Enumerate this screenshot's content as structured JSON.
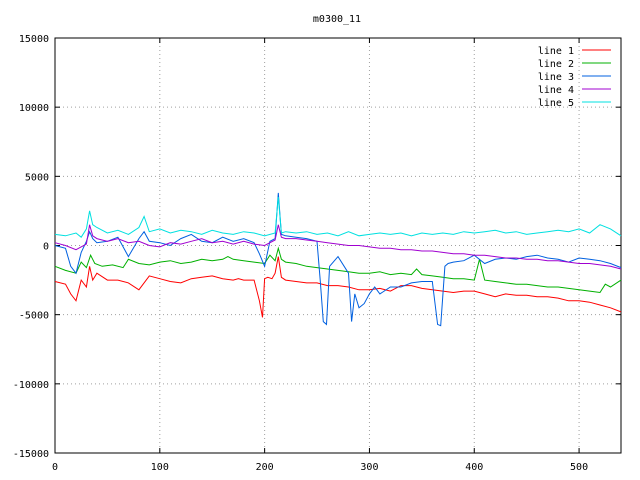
{
  "chart_data": {
    "type": "line",
    "title": "m0300_11",
    "xlabel": "",
    "ylabel": "",
    "xlim": [
      0,
      540
    ],
    "ylim": [
      -15000,
      15000
    ],
    "grid": true,
    "legend_position": "top-right",
    "x_ticks": [
      0,
      100,
      200,
      300,
      400,
      500
    ],
    "y_ticks": [
      -15000,
      -10000,
      -5000,
      0,
      5000,
      10000,
      15000
    ],
    "series": [
      {
        "name": "line 1",
        "color": "#ff0000",
        "x": [
          0,
          10,
          15,
          20,
          25,
          30,
          33,
          36,
          40,
          50,
          60,
          70,
          80,
          90,
          100,
          110,
          120,
          130,
          140,
          150,
          160,
          170,
          175,
          180,
          190,
          195,
          198,
          200,
          203,
          207,
          210,
          213,
          216,
          220,
          230,
          240,
          250,
          260,
          270,
          280,
          290,
          300,
          310,
          320,
          330,
          340,
          350,
          360,
          370,
          380,
          390,
          400,
          410,
          420,
          430,
          440,
          450,
          460,
          470,
          480,
          490,
          500,
          510,
          520,
          530,
          540
        ],
        "y": [
          -2600,
          -2800,
          -3500,
          -4000,
          -2500,
          -3000,
          -1500,
          -2500,
          -2000,
          -2500,
          -2500,
          -2700,
          -3200,
          -2200,
          -2400,
          -2600,
          -2700,
          -2400,
          -2300,
          -2200,
          -2400,
          -2500,
          -2400,
          -2500,
          -2500,
          -4000,
          -5200,
          -2400,
          -2300,
          -2400,
          -2000,
          -800,
          -2300,
          -2500,
          -2600,
          -2700,
          -2700,
          -2900,
          -2900,
          -3000,
          -3200,
          -3200,
          -3100,
          -3300,
          -2900,
          -2900,
          -3100,
          -3200,
          -3300,
          -3400,
          -3300,
          -3300,
          -3500,
          -3700,
          -3500,
          -3600,
          -3600,
          -3700,
          -3700,
          -3800,
          -4000,
          -4000,
          -4100,
          -4300,
          -4500,
          -4800
        ]
      },
      {
        "name": "line 2",
        "color": "#00b000",
        "x": [
          0,
          10,
          20,
          25,
          30,
          34,
          38,
          45,
          55,
          65,
          70,
          80,
          90,
          100,
          110,
          120,
          130,
          140,
          150,
          160,
          165,
          170,
          180,
          190,
          200,
          205,
          210,
          213,
          216,
          220,
          230,
          240,
          250,
          260,
          270,
          280,
          290,
          300,
          310,
          320,
          330,
          340,
          345,
          350,
          360,
          370,
          380,
          390,
          400,
          405,
          410,
          420,
          430,
          440,
          450,
          460,
          470,
          480,
          490,
          500,
          510,
          520,
          525,
          530,
          540
        ],
        "y": [
          -1500,
          -1800,
          -2000,
          -1200,
          -1600,
          -700,
          -1300,
          -1500,
          -1400,
          -1600,
          -1000,
          -1300,
          -1400,
          -1200,
          -1100,
          -1300,
          -1200,
          -1000,
          -1100,
          -1000,
          -800,
          -1000,
          -1100,
          -1200,
          -1300,
          -700,
          -1100,
          -200,
          -1000,
          -1200,
          -1300,
          -1500,
          -1600,
          -1700,
          -1800,
          -1900,
          -2000,
          -2000,
          -1900,
          -2100,
          -2000,
          -2100,
          -1700,
          -2100,
          -2200,
          -2300,
          -2400,
          -2400,
          -2500,
          -1000,
          -2500,
          -2600,
          -2700,
          -2800,
          -2800,
          -2900,
          -3000,
          -3000,
          -3100,
          -3200,
          -3300,
          -3400,
          -2800,
          -3000,
          -2500
        ]
      },
      {
        "name": "line 3",
        "color": "#0060e0",
        "x": [
          0,
          10,
          15,
          20,
          25,
          30,
          33,
          36,
          40,
          50,
          60,
          70,
          80,
          85,
          90,
          100,
          110,
          120,
          130,
          140,
          150,
          160,
          170,
          180,
          190,
          195,
          200,
          205,
          210,
          213,
          216,
          220,
          230,
          240,
          250,
          253,
          256,
          259,
          262,
          270,
          280,
          283,
          286,
          290,
          295,
          300,
          305,
          310,
          320,
          330,
          340,
          350,
          360,
          365,
          368,
          372,
          375,
          380,
          390,
          400,
          410,
          420,
          430,
          440,
          450,
          460,
          470,
          480,
          490,
          500,
          510,
          520,
          530,
          540
        ],
        "y": [
          0,
          -200,
          -1500,
          -2000,
          -500,
          300,
          1000,
          500,
          200,
          300,
          600,
          -800,
          500,
          1000,
          300,
          200,
          0,
          500,
          800,
          300,
          200,
          600,
          300,
          500,
          200,
          -600,
          -1500,
          300,
          500,
          3800,
          800,
          700,
          600,
          500,
          300,
          -2500,
          -5500,
          -5700,
          -1500,
          -800,
          -2000,
          -5500,
          -3500,
          -4500,
          -4200,
          -3500,
          -3000,
          -3500,
          -3000,
          -3000,
          -2700,
          -2600,
          -2600,
          -5700,
          -5800,
          -1500,
          -1300,
          -1200,
          -1100,
          -700,
          -1300,
          -1000,
          -900,
          -1000,
          -800,
          -700,
          -900,
          -1000,
          -1200,
          -900,
          -1000,
          -1100,
          -1300,
          -1600
        ]
      },
      {
        "name": "line 4",
        "color": "#a000d0",
        "x": [
          0,
          10,
          20,
          30,
          33,
          36,
          40,
          50,
          60,
          70,
          80,
          90,
          100,
          110,
          120,
          130,
          140,
          150,
          160,
          170,
          180,
          190,
          200,
          210,
          213,
          216,
          220,
          230,
          240,
          250,
          260,
          270,
          280,
          290,
          300,
          310,
          320,
          330,
          340,
          350,
          360,
          370,
          380,
          390,
          400,
          410,
          420,
          430,
          440,
          450,
          460,
          470,
          480,
          490,
          500,
          510,
          520,
          530,
          540
        ],
        "y": [
          200,
          0,
          -300,
          100,
          1500,
          700,
          500,
          300,
          500,
          200,
          300,
          0,
          -100,
          200,
          100,
          300,
          500,
          200,
          300,
          100,
          300,
          100,
          0,
          400,
          1500,
          600,
          500,
          500,
          400,
          300,
          200,
          100,
          0,
          0,
          -100,
          -200,
          -200,
          -300,
          -300,
          -400,
          -400,
          -500,
          -600,
          -600,
          -700,
          -700,
          -800,
          -900,
          -900,
          -1000,
          -1000,
          -1100,
          -1100,
          -1200,
          -1300,
          -1300,
          -1400,
          -1500,
          -1700
        ]
      },
      {
        "name": "line 5",
        "color": "#00e0e0",
        "x": [
          0,
          10,
          20,
          25,
          30,
          33,
          36,
          40,
          50,
          60,
          70,
          80,
          85,
          90,
          100,
          110,
          120,
          130,
          140,
          150,
          160,
          170,
          180,
          190,
          200,
          210,
          213,
          216,
          220,
          230,
          240,
          250,
          260,
          270,
          280,
          290,
          300,
          310,
          320,
          330,
          340,
          350,
          360,
          370,
          380,
          390,
          400,
          410,
          420,
          430,
          440,
          450,
          460,
          470,
          480,
          490,
          500,
          510,
          520,
          530,
          540
        ],
        "y": [
          800,
          700,
          900,
          600,
          1200,
          2500,
          1500,
          1300,
          900,
          1100,
          800,
          1300,
          2100,
          1000,
          1200,
          900,
          1100,
          1000,
          800,
          1100,
          900,
          800,
          1000,
          900,
          700,
          900,
          3500,
          900,
          1000,
          900,
          1000,
          800,
          900,
          700,
          1000,
          700,
          800,
          900,
          800,
          900,
          700,
          900,
          800,
          900,
          800,
          1000,
          900,
          1000,
          1100,
          900,
          1000,
          800,
          900,
          1000,
          1100,
          1000,
          1200,
          900,
          1500,
          1200,
          700
        ]
      }
    ]
  }
}
